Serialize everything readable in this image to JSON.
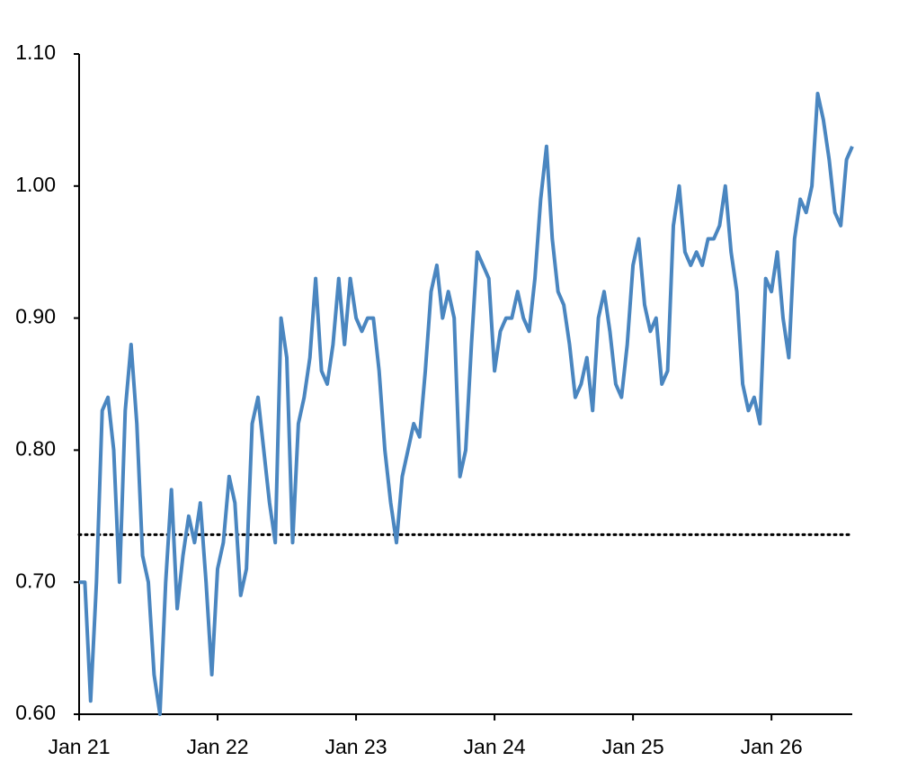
{
  "chart_data": {
    "type": "line",
    "categories": [
      "Jan 21",
      null,
      null,
      null,
      null,
      null,
      null,
      null,
      null,
      null,
      null,
      null,
      null,
      null,
      null,
      null,
      null,
      null,
      null,
      null,
      null,
      null,
      null,
      null,
      "Jan 22",
      null,
      null,
      null,
      null,
      null,
      null,
      null,
      null,
      null,
      null,
      null,
      null,
      null,
      null,
      null,
      null,
      null,
      null,
      null,
      null,
      null,
      null,
      null,
      "Jan 23",
      null,
      null,
      null,
      null,
      null,
      null,
      null,
      null,
      null,
      null,
      null,
      null,
      null,
      null,
      null,
      null,
      null,
      null,
      null,
      null,
      null,
      null,
      null,
      "Jan 24",
      null,
      null,
      null,
      null,
      null,
      null,
      null,
      null,
      null,
      null,
      null,
      null,
      null,
      null,
      null,
      null,
      null,
      null,
      null,
      null,
      null,
      null,
      null,
      "Jan 25",
      null,
      null,
      null,
      null,
      null,
      null,
      null,
      null,
      null,
      null,
      null,
      null,
      null,
      null,
      null,
      null,
      null,
      null,
      null,
      null,
      null,
      null,
      null,
      "Jan 26",
      null,
      null,
      null,
      null,
      null,
      null,
      null,
      null,
      null,
      null,
      null,
      null,
      null,
      null
    ],
    "values": [
      0.7,
      0.7,
      0.61,
      0.7,
      0.83,
      0.84,
      0.8,
      0.7,
      0.83,
      0.88,
      0.82,
      0.72,
      0.7,
      0.63,
      0.6,
      0.7,
      0.77,
      0.68,
      0.72,
      0.75,
      0.73,
      0.76,
      0.7,
      0.63,
      0.71,
      0.73,
      0.78,
      0.76,
      0.69,
      0.71,
      0.82,
      0.84,
      0.8,
      0.76,
      0.73,
      0.9,
      0.87,
      0.73,
      0.82,
      0.84,
      0.87,
      0.93,
      0.86,
      0.85,
      0.88,
      0.93,
      0.88,
      0.93,
      0.9,
      0.89,
      0.9,
      0.9,
      0.86,
      0.8,
      0.76,
      0.73,
      0.78,
      0.8,
      0.82,
      0.81,
      0.86,
      0.92,
      0.94,
      0.9,
      0.92,
      0.9,
      0.78,
      0.8,
      0.88,
      0.95,
      0.94,
      0.93,
      0.86,
      0.89,
      0.9,
      0.9,
      0.92,
      0.9,
      0.89,
      0.93,
      0.99,
      1.03,
      0.96,
      0.92,
      0.91,
      0.88,
      0.84,
      0.85,
      0.87,
      0.83,
      0.9,
      0.92,
      0.89,
      0.85,
      0.84,
      0.88,
      0.94,
      0.96,
      0.91,
      0.89,
      0.9,
      0.85,
      0.86,
      0.97,
      1.0,
      0.95,
      0.94,
      0.95,
      0.94,
      0.96,
      0.96,
      0.97,
      1.0,
      0.95,
      0.92,
      0.85,
      0.83,
      0.84,
      0.82,
      0.93,
      0.92,
      0.95,
      0.9,
      0.87,
      0.96,
      0.99,
      0.98,
      1.0,
      1.07,
      1.05,
      1.02,
      0.98,
      0.97,
      1.02,
      1.03
    ],
    "color": "#4a86c0",
    "reference_line": 0.736,
    "ylim": [
      0.6,
      1.1
    ],
    "yticks": [
      {
        "value": 0.6,
        "label": "0.60"
      },
      {
        "value": 0.7,
        "label": "0.70"
      },
      {
        "value": 0.8,
        "label": "0.80"
      },
      {
        "value": 0.9,
        "label": "0.90"
      },
      {
        "value": 1.0,
        "label": "1.00"
      },
      {
        "value": 1.1,
        "label": "1.10"
      }
    ],
    "grid": false
  }
}
